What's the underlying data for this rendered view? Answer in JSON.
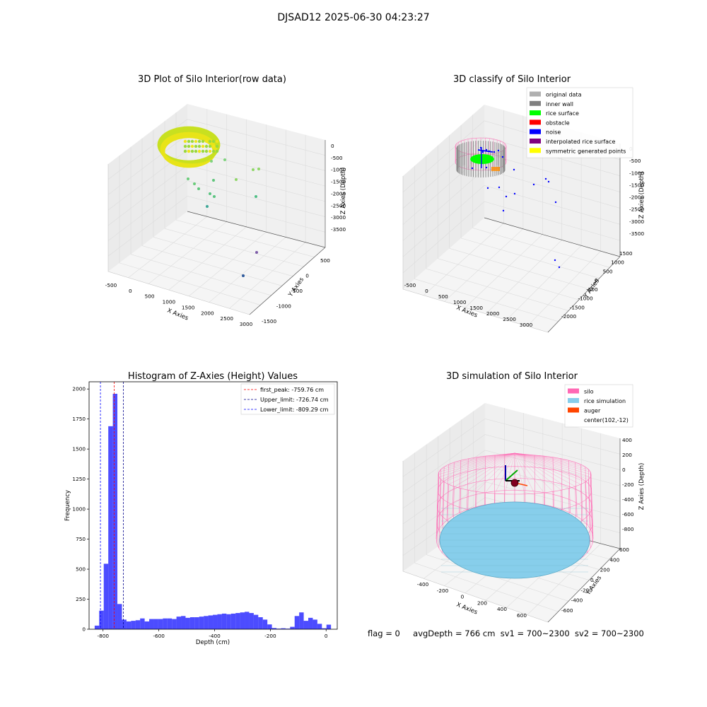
{
  "figure": {
    "suptitle": "DJSAD12 2025-06-30 04:23:27",
    "status": {
      "flag": "flag = 0",
      "avg_depth": "avgDepth = 766 cm",
      "sv1": "sv1 = 700~2300",
      "sv2": "sv2 = 700~2300"
    }
  },
  "chart_data": [
    {
      "type": "scatter",
      "panel": "top-left",
      "title": "3D Plot of Silo Interior(row data)",
      "xlabel": "X Axies",
      "ylabel": "Y Axies",
      "zlabel": "Z Axies (Depth)",
      "xticks": [
        "-500",
        "0",
        "500",
        "1000",
        "1500",
        "2000",
        "2500",
        "3000"
      ],
      "yticks": [
        "-1500",
        "-1000",
        "-500",
        "0",
        "500"
      ],
      "zticks": [
        "0",
        "-500",
        "-1000",
        "-1500",
        "-2000",
        "-2500",
        "-3000",
        "-3500"
      ],
      "grid": true,
      "colormap": "viridis"
    },
    {
      "type": "scatter",
      "panel": "top-right",
      "title": "3D classify of Silo Interior",
      "xlabel": "X Axies",
      "ylabel": "Y Axies",
      "zlabel": "Z Axies (Depth)",
      "xticks": [
        "-500",
        "0",
        "500",
        "1000",
        "1500",
        "2000",
        "2500",
        "3000"
      ],
      "yticks": [
        "-2000",
        "-1500",
        "-1000",
        "-500",
        "0",
        "500",
        "1000",
        "1500"
      ],
      "zticks": [
        "0",
        "-500",
        "-1000",
        "-1500",
        "-2000",
        "-2500",
        "-3000",
        "-3500"
      ],
      "grid": true,
      "legend_position": "top-right",
      "legend": [
        {
          "label": "original data",
          "color": "#b0b0b0"
        },
        {
          "label": "inner wall",
          "color": "#808080"
        },
        {
          "label": "rice surface",
          "color": "#00ff00"
        },
        {
          "label": "obstacle",
          "color": "#ff0000"
        },
        {
          "label": "noise",
          "color": "#0000ff"
        },
        {
          "label": "interpolated rice surface",
          "color": "#800080"
        },
        {
          "label": "symmetric generated points",
          "color": "#ffff00"
        }
      ]
    },
    {
      "type": "bar",
      "panel": "bottom-left",
      "title": "Histogram of Z-Axies (Height) Values",
      "xlabel": "Depth (cm)",
      "ylabel": "Frequency",
      "xlim": [
        -850,
        40
      ],
      "ylim": [
        0,
        2060
      ],
      "xticks": [
        -800,
        -600,
        -400,
        -200,
        0
      ],
      "yticks": [
        0,
        250,
        500,
        750,
        1000,
        1250,
        1500,
        1750,
        2000
      ],
      "bin_width": 16.3,
      "bin_left": -830,
      "color": "#0000ff",
      "alpha": 0.7,
      "values": [
        30,
        155,
        545,
        1690,
        1960,
        210,
        80,
        65,
        70,
        75,
        90,
        65,
        85,
        85,
        85,
        90,
        90,
        85,
        105,
        110,
        95,
        100,
        100,
        105,
        110,
        115,
        120,
        125,
        130,
        125,
        130,
        135,
        140,
        145,
        135,
        120,
        100,
        80,
        40,
        10,
        5,
        8,
        5,
        20,
        110,
        140,
        70,
        95,
        80,
        45,
        8,
        38
      ],
      "vlines": [
        {
          "x": -759.76,
          "label": "first_peak: -759.76 cm",
          "color": "#ff0000"
        },
        {
          "x": -726.74,
          "label": "Upper_limit: -726.74 cm",
          "color": "#00008b"
        },
        {
          "x": -809.29,
          "label": "Lower_limit: -809.29 cm",
          "color": "#0000ff"
        }
      ],
      "legend_position": "top-right"
    },
    {
      "type": "surface",
      "panel": "bottom-right",
      "title": "3D simulation of Silo Interior",
      "xlabel": "X Axies",
      "ylabel": "Y Axies",
      "zlabel": "Z Axies (Depth)",
      "xticks": [
        "-400",
        "-200",
        "0",
        "200",
        "400",
        "600"
      ],
      "yticks": [
        "-600",
        "-400",
        "-200",
        "0",
        "200",
        "400",
        "600"
      ],
      "zticks": [
        "400",
        "200",
        "0",
        "-200",
        "-400",
        "-600",
        "-800"
      ],
      "grid": true,
      "legend_position": "top-right",
      "legend": [
        {
          "label": "silo",
          "color": "#ff69b4"
        },
        {
          "label": "rice simulation",
          "color": "#87ceeb"
        },
        {
          "label": "auger",
          "color": "#ff4500"
        },
        {
          "label": "center(102,-12)",
          "color": "none"
        }
      ]
    }
  ]
}
